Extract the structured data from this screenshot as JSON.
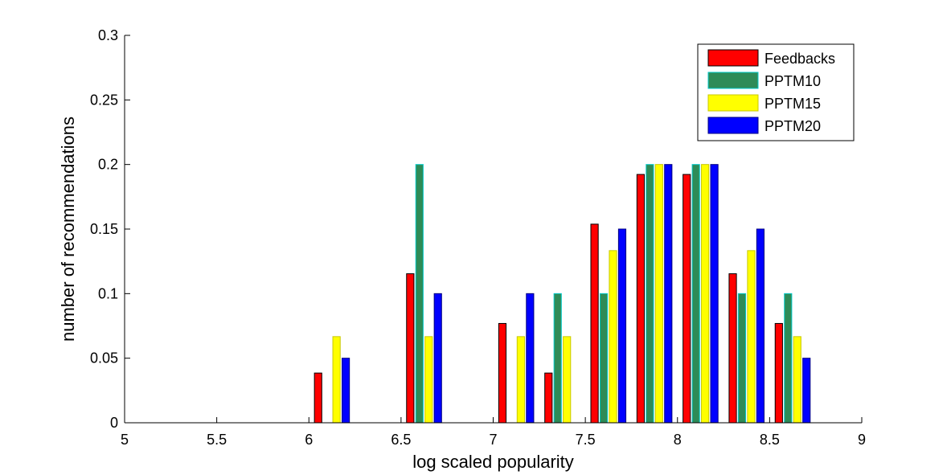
{
  "chart_data": {
    "type": "bar",
    "title": "",
    "xlabel": "log scaled popularity",
    "ylabel": "number of recommendations",
    "xlim": [
      5,
      9
    ],
    "ylim": [
      0,
      0.3
    ],
    "xticks": [
      "5",
      "5.5",
      "6",
      "6.5",
      "7",
      "7.5",
      "8",
      "8.5",
      "9"
    ],
    "yticks": [
      "0",
      "0.05",
      "0.1",
      "0.15",
      "0.2",
      "0.25",
      "0.3"
    ],
    "grid": false,
    "legend_position": "top-right",
    "bin_centers": [
      5.125,
      5.375,
      5.625,
      5.875,
      6.125,
      6.375,
      6.625,
      6.875,
      7.125,
      7.375,
      7.625,
      7.875,
      8.125,
      8.375,
      8.625,
      8.875
    ],
    "series": [
      {
        "name": "Feedbacks",
        "color": "#ff0000",
        "values": [
          0,
          0,
          0,
          0,
          0.0385,
          0,
          0.1154,
          0,
          0.0769,
          0.0385,
          0.1538,
          0.1923,
          0.1923,
          0.1154,
          0.0769,
          0
        ]
      },
      {
        "name": "PPTM10",
        "color": "#2e8b57",
        "values": [
          0,
          0,
          0,
          0,
          0,
          0,
          0.2,
          0,
          0,
          0.1,
          0.1,
          0.2,
          0.2,
          0.1,
          0.1,
          0
        ]
      },
      {
        "name": "PPTM15",
        "color": "#ffff00",
        "values": [
          0,
          0,
          0,
          0,
          0.0667,
          0,
          0.0667,
          0,
          0.0667,
          0.0667,
          0.1333,
          0.2,
          0.2,
          0.1333,
          0.0667,
          0
        ]
      },
      {
        "name": "PPTM20",
        "color": "#0000ff",
        "values": [
          0,
          0,
          0,
          0,
          0.05,
          0,
          0.1,
          0,
          0.1,
          0,
          0.15,
          0.2,
          0.2,
          0.15,
          0.05,
          0
        ]
      }
    ]
  }
}
